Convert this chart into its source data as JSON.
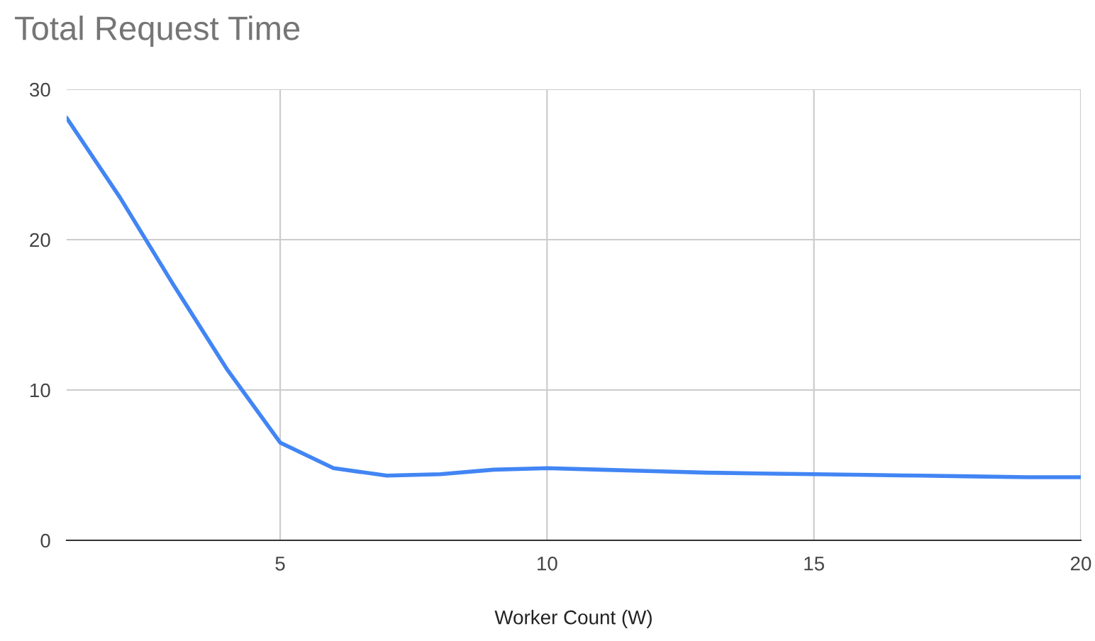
{
  "chart_data": {
    "type": "line",
    "title": "Total Request Time",
    "xlabel": "Worker Count (W)",
    "x": [
      1,
      2,
      3,
      4,
      5,
      6,
      7,
      8,
      9,
      10,
      11,
      12,
      13,
      14,
      15,
      16,
      17,
      18,
      19,
      20
    ],
    "series": [
      {
        "color": "#4285f4",
        "values": [
          28.1,
          22.8,
          17.0,
          11.4,
          6.5,
          4.8,
          4.3,
          4.4,
          4.7,
          4.8,
          4.7,
          4.6,
          4.5,
          4.45,
          4.4,
          4.35,
          4.3,
          4.25,
          4.2,
          4.2
        ]
      }
    ],
    "xlim": [
      1,
      20
    ],
    "xticks": [
      5,
      10,
      15,
      20
    ],
    "ylim": [
      0,
      30
    ],
    "yticks": [
      0,
      10,
      20,
      30
    ],
    "grid": true,
    "legend": false
  }
}
